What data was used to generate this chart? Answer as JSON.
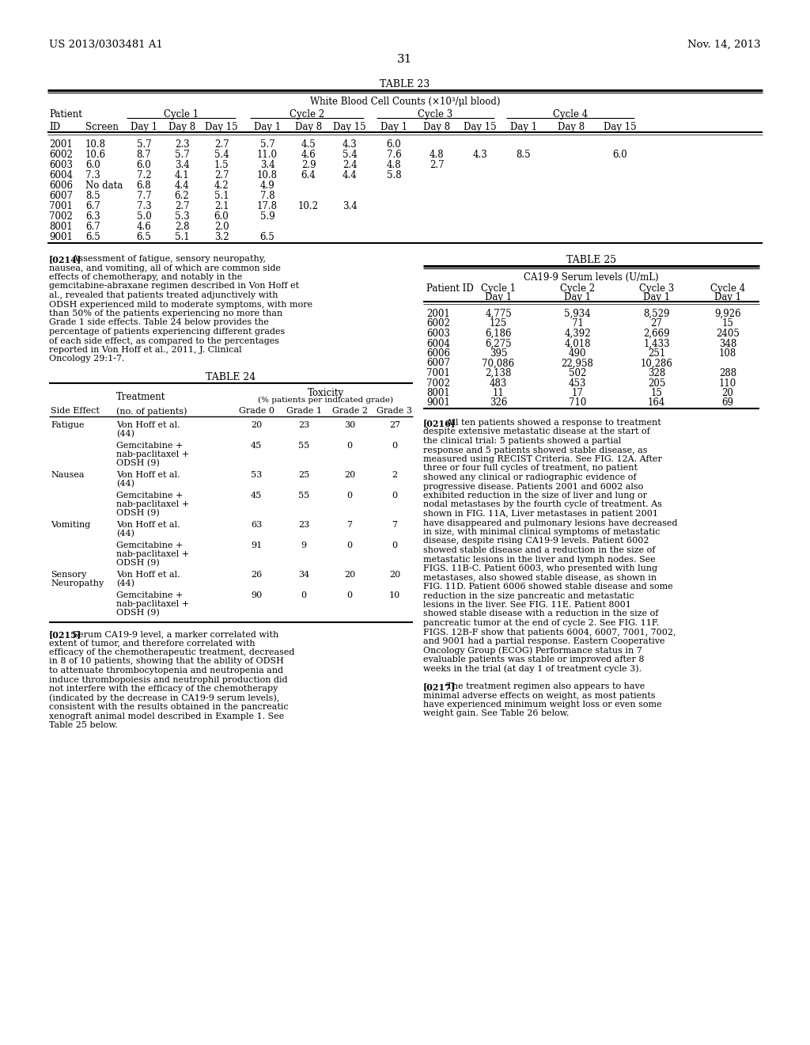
{
  "page_number": "31",
  "patent_left": "US 2013/0303481 A1",
  "patent_right": "Nov. 14, 2013",
  "bg_color": "#ffffff",
  "table23": {
    "title": "TABLE 23",
    "subtitle": "White Blood Cell Counts (×10³/μl blood)",
    "headers": [
      "ID",
      "Screen",
      "Day 1",
      "Day 8",
      "Day 15",
      "Day 1",
      "Day 8",
      "Day 15",
      "Day 1",
      "Day 8",
      "Day 15",
      "Day 1",
      "Day 8",
      "Day 15"
    ],
    "rows": [
      [
        "2001",
        "10.8",
        "5.7",
        "2.3",
        "2.7",
        "5.7",
        "4.5",
        "4.3",
        "6.0",
        "",
        "",
        "",
        "",
        ""
      ],
      [
        "6002",
        "10.6",
        "8.7",
        "5.7",
        "5.4",
        "11.0",
        "4.6",
        "5.4",
        "7.6",
        "4.8",
        "4.3",
        "8.5",
        "",
        "6.0"
      ],
      [
        "6003",
        "6.0",
        "6.0",
        "3.4",
        "1.5",
        "3.4",
        "2.9",
        "2.4",
        "4.8",
        "2.7",
        "",
        "",
        "",
        ""
      ],
      [
        "6004",
        "7.3",
        "7.2",
        "4.1",
        "2.7",
        "10.8",
        "6.4",
        "4.4",
        "5.8",
        "",
        "",
        "",
        "",
        ""
      ],
      [
        "6006",
        "No data",
        "6.8",
        "4.4",
        "4.2",
        "4.9",
        "",
        "",
        "",
        "",
        "",
        "",
        "",
        ""
      ],
      [
        "6007",
        "8.5",
        "7.7",
        "6.2",
        "5.1",
        "7.8",
        "",
        "",
        "",
        "",
        "",
        "",
        "",
        ""
      ],
      [
        "7001",
        "6.7",
        "7.3",
        "2.7",
        "2.1",
        "17.8",
        "10.2",
        "3.4",
        "",
        "",
        "",
        "",
        "",
        ""
      ],
      [
        "7002",
        "6.3",
        "5.0",
        "5.3",
        "6.0",
        "5.9",
        "",
        "",
        "",
        "",
        "",
        "",
        "",
        ""
      ],
      [
        "8001",
        "6.7",
        "4.6",
        "2.8",
        "2.0",
        "",
        "",
        "",
        "",
        "",
        "",
        "",
        "",
        ""
      ],
      [
        "9001",
        "6.5",
        "6.5",
        "5.1",
        "3.2",
        "6.5",
        "",
        "",
        "",
        "",
        "",
        "",
        "",
        ""
      ]
    ]
  },
  "table24": {
    "title": "TABLE 24",
    "rows": [
      [
        "Fatigue",
        "Von Hoff et al.\n(44)",
        "20",
        "23",
        "30",
        "27"
      ],
      [
        "",
        "Gemcitabine +\nnab-paclitaxel +\nODSH (9)",
        "45",
        "55",
        "0",
        "0"
      ],
      [
        "Nausea",
        "Von Hoff et al.\n(44)",
        "53",
        "25",
        "20",
        "2"
      ],
      [
        "",
        "Gemcitabine +\nnab-paclitaxel +\nODSH (9)",
        "45",
        "55",
        "0",
        "0"
      ],
      [
        "Vomiting",
        "Von Hoff et al.\n(44)",
        "63",
        "23",
        "7",
        "7"
      ],
      [
        "",
        "Gemcitabine +\nnab-paclitaxel +\nODSH (9)",
        "91",
        "9",
        "0",
        "0"
      ],
      [
        "Sensory\nNeuropathy",
        "Von Hoff et al.\n(44)",
        "26",
        "34",
        "20",
        "20"
      ],
      [
        "",
        "Gemcitabine +\nnab-paclitaxel +\nODSH (9)",
        "90",
        "0",
        "0",
        "10"
      ]
    ]
  },
  "table25": {
    "title": "TABLE 25",
    "subtitle": "CA19-9 Serum levels (U/mL)",
    "rows": [
      [
        "2001",
        "4,775",
        "5,934",
        "8,529",
        "9,926"
      ],
      [
        "6002",
        "125",
        "71",
        "27",
        "15"
      ],
      [
        "6003",
        "6,186",
        "4,392",
        "2,669",
        "2405"
      ],
      [
        "6004",
        "6,275",
        "4,018",
        "1,433",
        "348"
      ],
      [
        "6006",
        "395",
        "490",
        "251",
        "108"
      ],
      [
        "6007",
        "70,086",
        "22,958",
        "10,286",
        ""
      ],
      [
        "7001",
        "2,138",
        "502",
        "328",
        "288"
      ],
      [
        "7002",
        "483",
        "453",
        "205",
        "110"
      ],
      [
        "8001",
        "11",
        "17",
        "15",
        "20"
      ],
      [
        "9001",
        "326",
        "710",
        "164",
        "69"
      ]
    ]
  },
  "para0214": "Assessment of fatigue, sensory neuropathy, nausea, and vomiting, all of which are common side effects of chemotherapy, and notably in the gemcitabine-abraxane regimen described in Von Hoff et al., revealed that patients treated adjunctively with ODSH experienced mild to moderate symptoms, with more than 50% of the patients experiencing no more than Grade 1 side effects. Table 24 below provides the percentage of patients experiencing different grades of each side effect, as compared to the percentages reported in Von Hoff et al., 2011, J. Clinical Oncology 29:1-7.",
  "para0215": "Serum CA19-9 level, a marker correlated with extent of tumor, and therefore correlated with efficacy of the chemotherapeutic treatment, decreased in 8 of 10 patients, showing that the ability of ODSH to attenuate thrombocytopenia and neutropenia and induce thrombopoiesis and neutrophil production did not interfere with the efficacy of the chemotherapy (indicated by the decrease in CA19-9 serum levels), consistent with the results obtained in the pancreatic xenograft animal model described in Example 1. See Table 25 below.",
  "para0216": "All ten patients showed a response to treatment despite extensive metastatic disease at the start of the clinical trial: 5 patients showed a partial response and 5 patients showed stable disease, as measured using RECIST Criteria. See FIG. 12A. After three or four full cycles of treatment, no patient showed any clinical or radiographic evidence of progressive disease. Patients 2001 and 6002 also exhibited reduction in the size of liver and lung or nodal metastases by the fourth cycle of treatment. As shown in FIG. 11A, Liver metastases in patient 2001 have disappeared and pulmonary lesions have decreased in size, with minimal clinical symptoms of metastatic disease, despite rising CA19-9 levels. Patient 6002 showed stable disease and a reduction in the size of metastatic lesions in the liver and lymph nodes. See FIGS. 11B-C. Patient 6003, who presented with lung metastases, also showed stable disease, as shown in FIG. 11D. Patient 6006 showed stable disease and some reduction in the size pancreatic and metastatic lesions in the liver. See FIG. 11E. Patient 8001 showed stable disease with a reduction in the size of pancreatic tumor at the end of cycle 2. See FIG. 11F. FIGS. 12B-F show that patients 6004, 6007, 7001, 7002, and 9001 had a partial response. Eastern Cooperative Oncology Group (ECOG) Performance status in 7 evaluable patients was stable or improved after 8 weeks in the trial (at day 1 of treatment cycle 3).",
  "para0217": "The treatment regimen also appears to have minimal adverse effects on weight, as most patients have experienced minimum weight loss or even some weight gain. See Table 26 below."
}
